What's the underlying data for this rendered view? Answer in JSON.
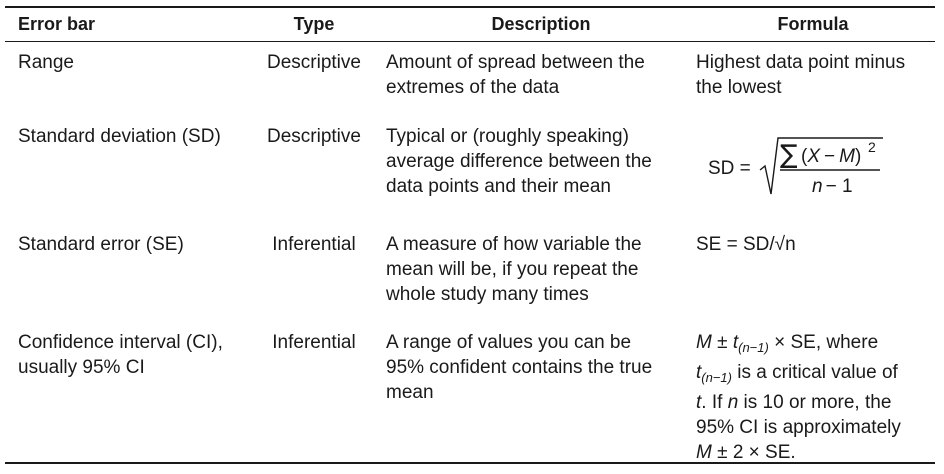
{
  "headers": {
    "error_bar": "Error bar",
    "type": "Type",
    "description": "Description",
    "formula": "Formula"
  },
  "rows": [
    {
      "error_bar": [
        "Range"
      ],
      "type": "Descriptive",
      "description": [
        "Amount of spread between the",
        "extremes of the data"
      ],
      "formula": [
        "Highest data point minus",
        "the lowest"
      ]
    },
    {
      "error_bar": [
        "Standard deviation (SD)"
      ],
      "type": "Descriptive",
      "description": [
        "Typical or (roughly speaking)",
        "average difference between the",
        "data points and their mean"
      ],
      "formula_parts": {
        "lhs": "SD =",
        "sum": "∑",
        "numerator_open": "(",
        "x": "X",
        "minus": "−",
        "m": "M",
        "numerator_close": ")",
        "exp": "2",
        "n": "n",
        "den_rest": "− 1"
      }
    },
    {
      "error_bar": [
        "Standard error (SE)"
      ],
      "type": "Inferential",
      "description": [
        "A measure of how variable the",
        "mean will be, if you repeat the",
        "whole study many times"
      ],
      "formula": [
        "SE = SD/√n"
      ]
    },
    {
      "error_bar": [
        "Confidence interval (CI),",
        "usually 95% CI"
      ],
      "type": "Inferential",
      "description": [
        "A range of values you can be",
        "95% confident contains the true",
        "mean"
      ],
      "formula_ci": {
        "l1_m": "M",
        "l1_pm": " ± ",
        "l1_t": "t",
        "l1_sub": "(n−1)",
        "l1_rest": " × SE, where",
        "l2_t": "t",
        "l2_sub": "(n−1)",
        "l2_rest": " is a critical value of",
        "l3_t": "t",
        "l3_mid": ". If ",
        "l3_n": "n",
        "l3_rest": " is 10 or more, the",
        "l4": "95% CI is approximately",
        "l5_m": "M",
        "l5_rest": " ± 2 × SE."
      }
    }
  ]
}
